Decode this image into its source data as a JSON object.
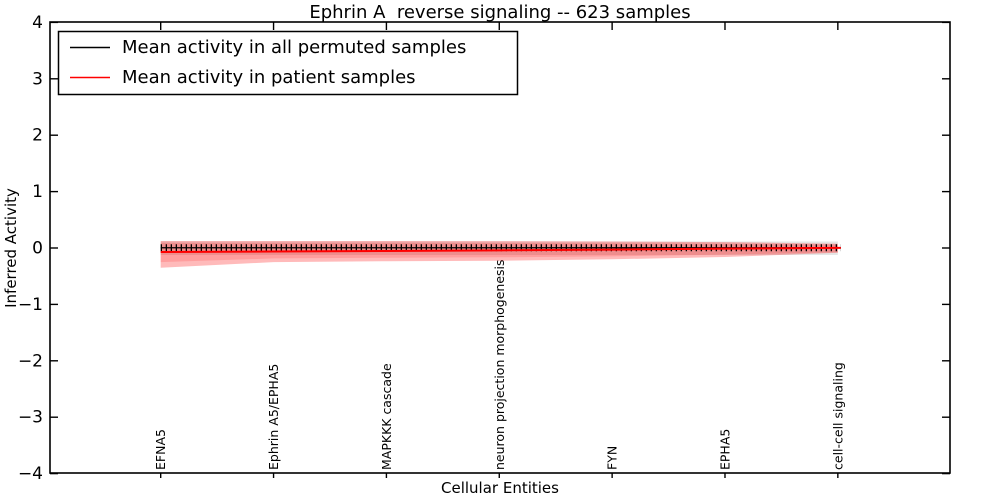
{
  "chart_data": {
    "type": "line",
    "title": "Ephrin A  reverse signaling -- 623 samples",
    "xlabel": "Cellular Entities",
    "ylabel": "Inferred Activity",
    "ylim": [
      -4,
      4
    ],
    "grid": false,
    "yticks": [
      4,
      3,
      2,
      1,
      0,
      -1,
      -2,
      -3,
      -4
    ],
    "yticklabels": [
      "4",
      "3",
      "2",
      "1",
      "0",
      "−1",
      "−2",
      "−3",
      "−4"
    ],
    "categories": [
      "EFNA5",
      "Ephrin A5/EPHA5",
      "MAPKKK cascade",
      "neuron projection morphogenesis",
      "FYN",
      "EPHA5",
      "cell-cell signaling"
    ],
    "legend": {
      "position": "upper left",
      "entries": [
        {
          "label": "Mean activity in all permuted samples",
          "color": "#000000"
        },
        {
          "label": "Mean activity in patient samples",
          "color": "#ff0000"
        }
      ]
    },
    "series": [
      {
        "name": "Mean activity in all permuted samples",
        "color": "#000000",
        "marker": "+",
        "values": [
          0.005,
          0.005,
          0.005,
          0.005,
          0.005,
          0.005,
          0.005
        ]
      },
      {
        "name": "Mean activity in patient samples",
        "color": "#ff0000",
        "marker": "none",
        "values": [
          -0.07,
          -0.062,
          -0.053,
          -0.042,
          -0.028,
          -0.012,
          0.002
        ]
      }
    ],
    "bands": [
      {
        "name": "permuted-samples-std-band",
        "color": "#000000",
        "opacity": 0.1,
        "upper": [
          0.115,
          0.115,
          0.115,
          0.115,
          0.115,
          0.115,
          0.115
        ],
        "lower": [
          -0.125,
          -0.125,
          -0.125,
          -0.125,
          -0.125,
          -0.125,
          -0.125
        ]
      },
      {
        "name": "patient-samples-band-outer",
        "color": "#ff0000",
        "opacity": 0.27,
        "upper": [
          0.125,
          0.125,
          0.125,
          0.122,
          0.115,
          0.105,
          0.075
        ],
        "lower": [
          -0.35,
          -0.25,
          -0.235,
          -0.225,
          -0.2,
          -0.16,
          -0.085
        ]
      },
      {
        "name": "patient-samples-band-inner",
        "color": "#ff0000",
        "opacity": 0.15,
        "upper": [
          0.09,
          0.09,
          0.09,
          0.088,
          0.084,
          0.078,
          0.065
        ],
        "lower": [
          -0.25,
          -0.185,
          -0.172,
          -0.165,
          -0.148,
          -0.118,
          -0.075
        ]
      }
    ]
  }
}
